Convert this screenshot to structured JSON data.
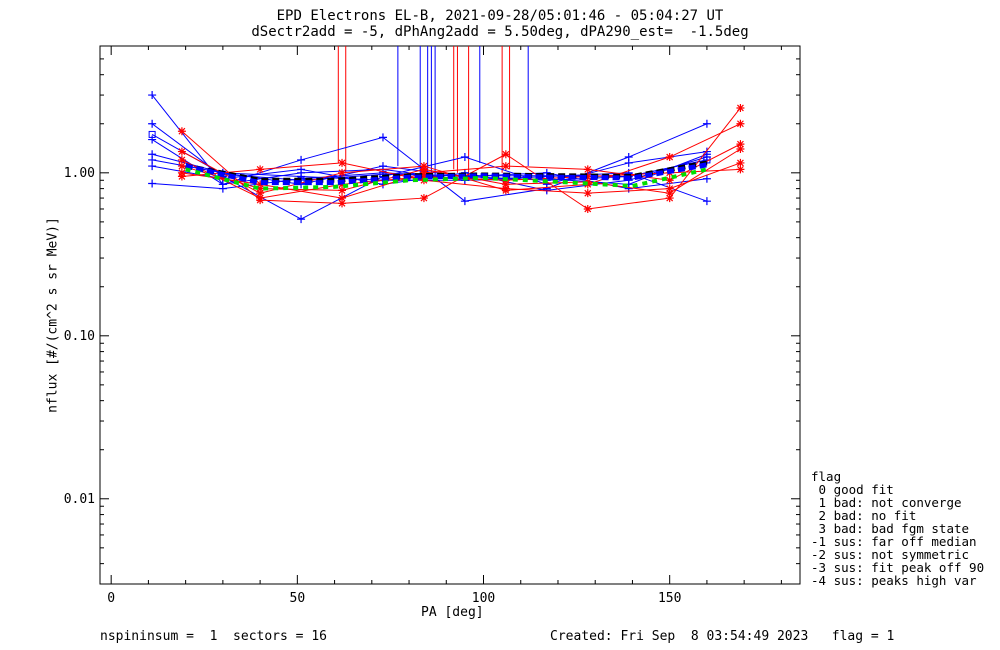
{
  "header": {
    "title_line1": "EPD Electrons EL-B, 2021-09-28/05:01:46 - 05:04:27 UT",
    "title_line2": "dSectr2add = -5, dPhAng2add = 5.50deg, dPA290_est=  -1.5deg"
  },
  "footer": {
    "left": "nspininsum =  1  sectors = 16",
    "right": "Created: Fri Sep  8 03:54:49 2023   flag = 1"
  },
  "legend": {
    "title": "flag",
    "items": [
      " 0 good fit",
      " 1 bad: not converge",
      " 2 bad: no fit",
      " 3 bad: bad fgm state",
      "-1 sus: far off median",
      "-2 sus: not symmetric",
      "-3 sus: fit peak off 90",
      "-4 sus: peaks high var"
    ]
  },
  "chart_data": {
    "type": "line",
    "xlabel": "PA [deg]",
    "ylabel": "nflux [#/(cm^2 s sr MeV)]",
    "xlim": [
      -3,
      185
    ],
    "ylim": [
      0.003,
      6
    ],
    "yscale": "log",
    "xticks": [
      0,
      50,
      100,
      150
    ],
    "yticks": [
      0.01,
      0.1,
      1.0
    ],
    "ytick_labels": [
      "0.01",
      "0.10",
      "1.00"
    ],
    "colors": {
      "blue": "#0000ff",
      "red": "#ff0000",
      "green": "#00dd00",
      "black": "#000000"
    },
    "series": [
      {
        "color": "blue",
        "marker": "plus",
        "x": [
          11,
          30,
          51,
          73,
          95,
          117,
          139,
          160
        ],
        "y": [
          3.0,
          0.85,
          1.2,
          1.65,
          0.67,
          0.8,
          1.25,
          2.0
        ]
      },
      {
        "color": "blue",
        "marker": "plus",
        "x": [
          11,
          30,
          51,
          73,
          95,
          117,
          139,
          160
        ],
        "y": [
          2.0,
          0.95,
          0.52,
          0.95,
          1.25,
          0.85,
          1.15,
          1.35
        ]
      },
      {
        "color": "blue",
        "marker": "plus",
        "x": [
          11,
          30,
          51,
          73,
          95,
          117,
          139,
          160
        ],
        "y": [
          1.6,
          0.85,
          1.0,
          1.05,
          0.9,
          0.95,
          1.0,
          0.67
        ]
      },
      {
        "color": "blue",
        "marker": "plus",
        "x": [
          11,
          30,
          51,
          73,
          95,
          117,
          139,
          160
        ],
        "y": [
          1.3,
          1.0,
          0.85,
          1.1,
          0.95,
          0.9,
          0.95,
          1.2
        ]
      },
      {
        "color": "blue",
        "marker": "plus",
        "x": [
          11,
          30,
          51,
          73,
          95,
          117,
          139,
          160
        ],
        "y": [
          1.2,
          1.0,
          0.95,
          0.9,
          0.9,
          0.92,
          0.85,
          1.3
        ]
      },
      {
        "color": "blue",
        "marker": "plus",
        "x": [
          11,
          30,
          51,
          73,
          95,
          117,
          139,
          160
        ],
        "y": [
          1.1,
          0.92,
          1.05,
          0.85,
          1.0,
          0.78,
          0.9,
          1.25
        ]
      },
      {
        "color": "blue",
        "marker": "plus",
        "x": [
          11,
          30,
          51,
          73,
          95,
          117,
          139,
          160
        ],
        "y": [
          0.86,
          0.8,
          0.92,
          1.0,
          0.95,
          1.0,
          0.8,
          0.92
        ]
      },
      {
        "color": "blue",
        "marker": "square",
        "x": [
          11,
          30,
          51,
          73,
          95,
          117,
          139,
          160
        ],
        "y": [
          1.72,
          0.98,
          0.9,
          0.98,
          0.96,
          0.96,
          0.95,
          1.2
        ]
      },
      {
        "color": "red",
        "marker": "star",
        "x": [
          19,
          40,
          62,
          84,
          106,
          128,
          150,
          169
        ],
        "y": [
          1.8,
          0.68,
          0.65,
          0.7,
          1.3,
          0.6,
          0.7,
          2.5
        ]
      },
      {
        "color": "red",
        "marker": "star",
        "x": [
          19,
          40,
          62,
          84,
          106,
          128,
          150,
          169
        ],
        "y": [
          1.35,
          0.75,
          1.0,
          1.1,
          0.78,
          0.85,
          1.25,
          2.0
        ]
      },
      {
        "color": "red",
        "marker": "star",
        "x": [
          19,
          40,
          62,
          84,
          106,
          128,
          150,
          169
        ],
        "y": [
          1.0,
          0.85,
          0.7,
          1.0,
          1.1,
          1.05,
          0.9,
          1.5
        ]
      },
      {
        "color": "red",
        "marker": "star",
        "x": [
          19,
          40,
          62,
          84,
          106,
          128,
          150,
          169
        ],
        "y": [
          0.95,
          1.05,
          1.15,
          0.9,
          0.8,
          0.75,
          0.8,
          1.15
        ]
      },
      {
        "color": "red",
        "marker": "star",
        "x": [
          19,
          40,
          62,
          84,
          106,
          128,
          150,
          169
        ],
        "y": [
          1.2,
          0.7,
          0.85,
          0.95,
          0.9,
          0.95,
          1.0,
          1.05
        ]
      },
      {
        "color": "red",
        "marker": "star",
        "x": [
          19,
          40,
          62,
          84,
          106,
          128,
          150,
          169
        ],
        "y": [
          1.1,
          0.8,
          0.78,
          1.05,
          0.85,
          0.88,
          0.75,
          1.4
        ]
      },
      {
        "color": "black",
        "marker": "dash",
        "x": [
          20,
          40,
          60,
          80,
          100,
          120,
          140,
          160
        ],
        "y": [
          1.1,
          0.9,
          0.9,
          0.96,
          0.97,
          0.96,
          0.95,
          1.15
        ]
      },
      {
        "color": "blue",
        "marker": "dash",
        "x": [
          20,
          40,
          60,
          80,
          100,
          120,
          140,
          160
        ],
        "y": [
          1.1,
          0.87,
          0.87,
          0.94,
          0.96,
          0.94,
          0.93,
          1.12
        ]
      },
      {
        "color": "green",
        "marker": "dash",
        "x": [
          20,
          40,
          60,
          80,
          100,
          120,
          140,
          160
        ],
        "y": [
          1.05,
          0.8,
          0.82,
          0.9,
          0.93,
          0.88,
          0.83,
          1.05
        ]
      }
    ],
    "error_bars": [
      {
        "color": "red",
        "x": 61,
        "y_lo": 1.15,
        "y_hi": 6
      },
      {
        "color": "red",
        "x": 63,
        "y_lo": 1.0,
        "y_hi": 6
      },
      {
        "color": "blue",
        "x": 77,
        "y_lo": 1.1,
        "y_hi": 6
      },
      {
        "color": "blue",
        "x": 83,
        "y_lo": 0.9,
        "y_hi": 6
      },
      {
        "color": "blue",
        "x": 85,
        "y_lo": 1.0,
        "y_hi": 6
      },
      {
        "color": "blue",
        "x": 86,
        "y_lo": 0.95,
        "y_hi": 6
      },
      {
        "color": "blue",
        "x": 87,
        "y_lo": 0.95,
        "y_hi": 6
      },
      {
        "color": "red",
        "x": 92,
        "y_lo": 1.05,
        "y_hi": 6
      },
      {
        "color": "red",
        "x": 93,
        "y_lo": 1.0,
        "y_hi": 6
      },
      {
        "color": "red",
        "x": 96,
        "y_lo": 0.9,
        "y_hi": 6
      },
      {
        "color": "blue",
        "x": 99,
        "y_lo": 1.15,
        "y_hi": 6
      },
      {
        "color": "red",
        "x": 105,
        "y_lo": 1.0,
        "y_hi": 6
      },
      {
        "color": "red",
        "x": 107,
        "y_lo": 1.05,
        "y_hi": 6
      },
      {
        "color": "blue",
        "x": 112,
        "y_lo": 1.1,
        "y_hi": 6
      }
    ]
  }
}
